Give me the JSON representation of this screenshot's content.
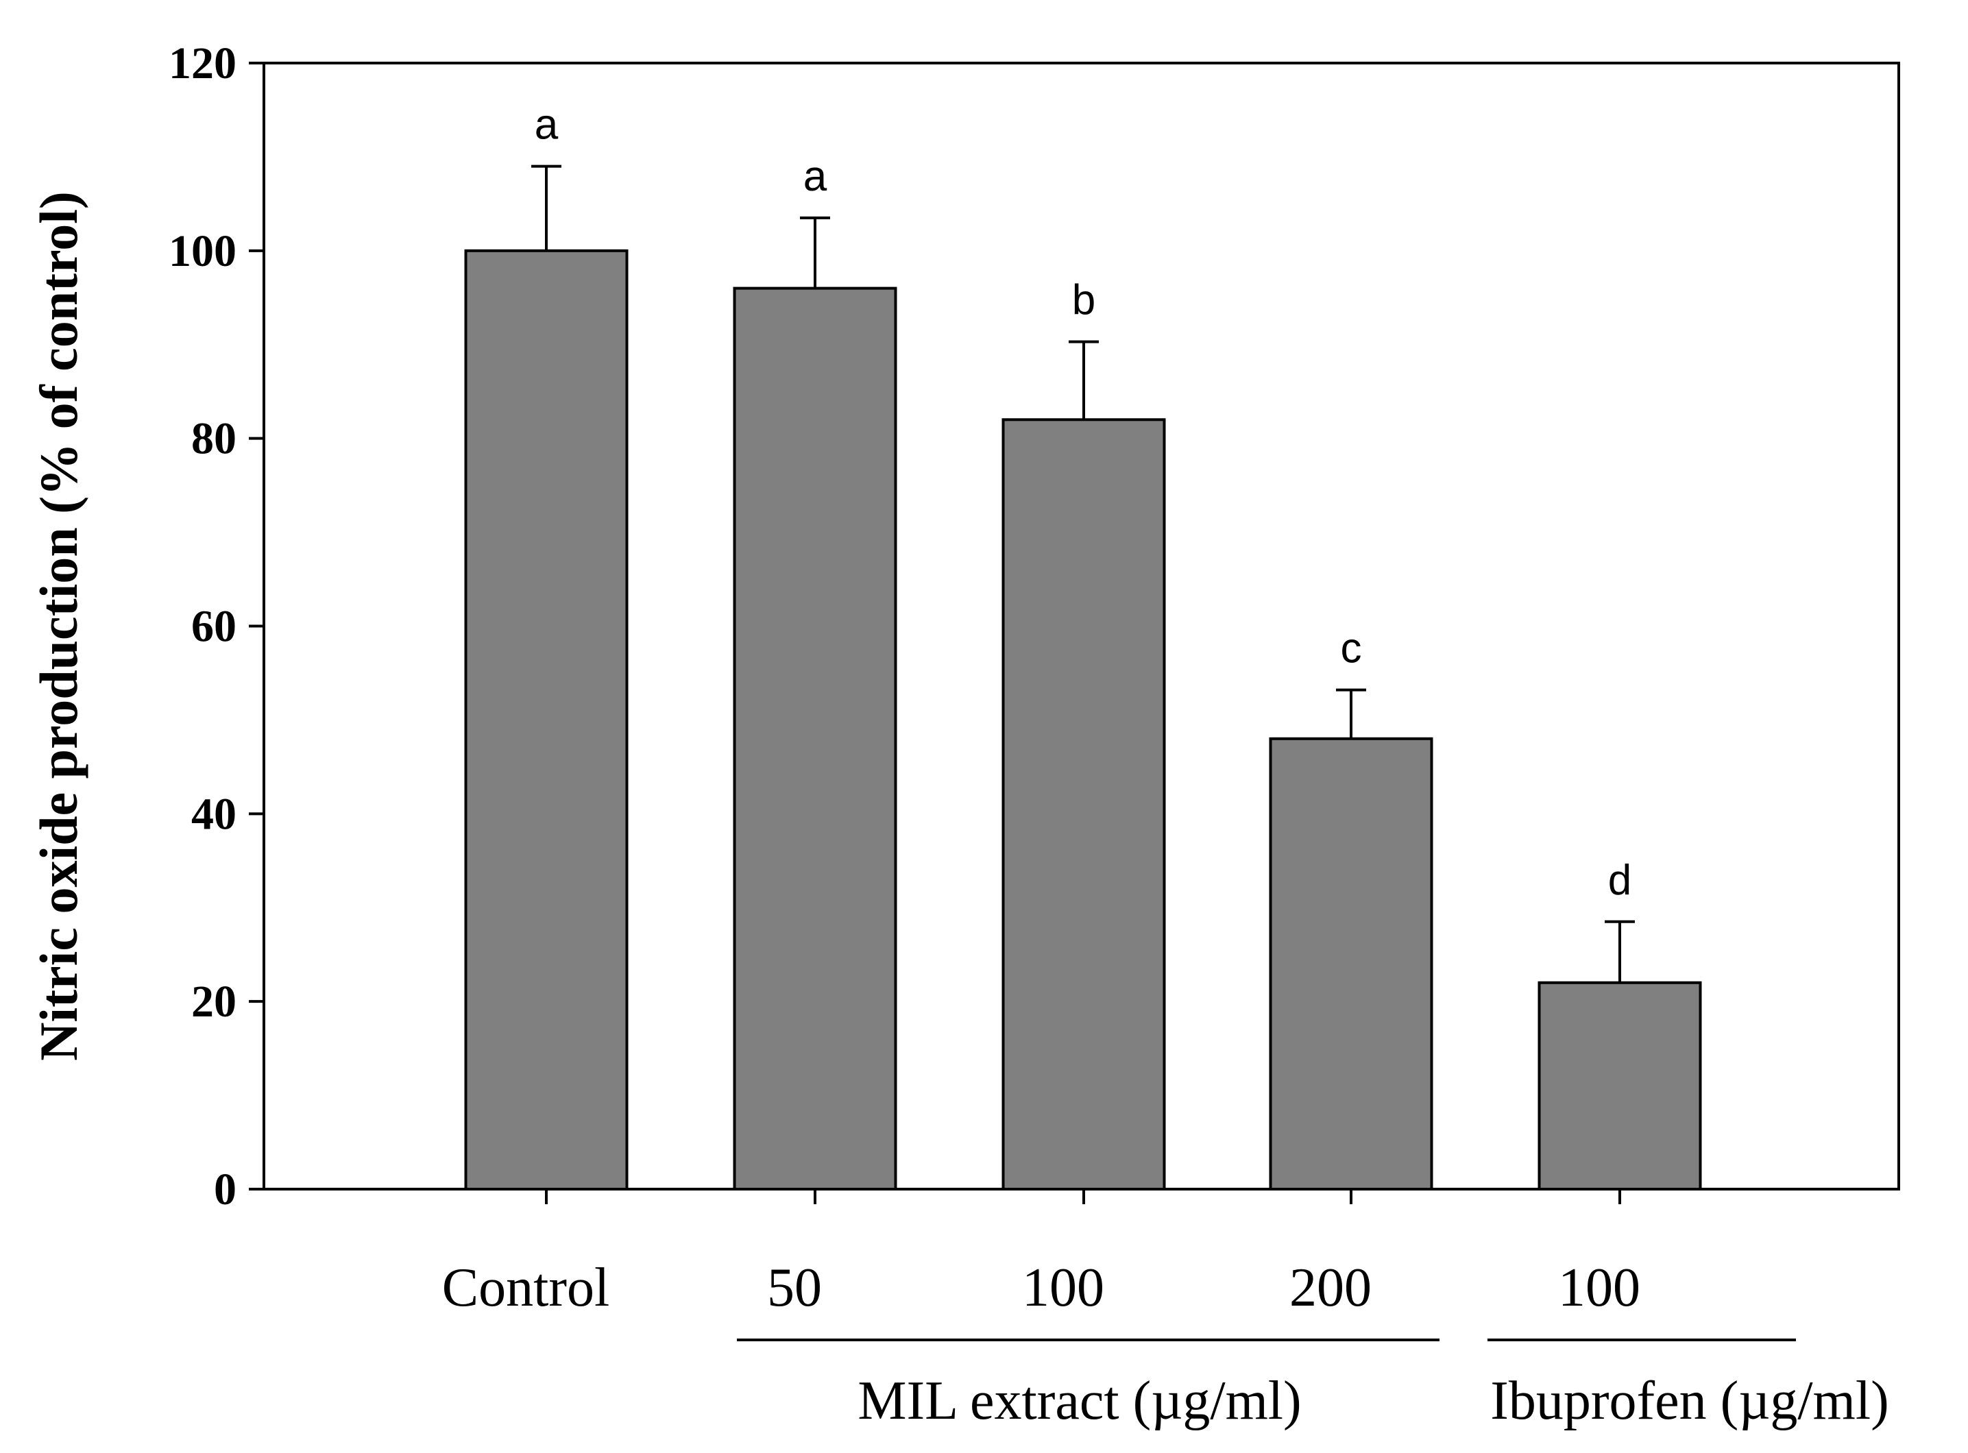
{
  "chart_data": {
    "type": "bar",
    "categories": [
      "Control",
      "50",
      "100",
      "200",
      "100"
    ],
    "values": [
      100,
      96,
      82,
      48,
      22
    ],
    "errors": [
      9,
      7.5,
      8.3,
      5.2,
      6.5
    ],
    "significance": [
      "a",
      "a",
      "b",
      "c",
      "d"
    ],
    "groups": [
      {
        "label": "MIL extract (µg/ml)",
        "from": 1,
        "to": 3
      },
      {
        "label": "Ibuprofen (µg/ml)",
        "from": 4,
        "to": 4
      }
    ],
    "ylabel": "Nitric oxide production (% of control)",
    "ylim": [
      0,
      120
    ],
    "yticks": [
      0,
      20,
      40,
      60,
      80,
      100,
      120
    ],
    "grid": false,
    "bar_color": "#808080"
  }
}
